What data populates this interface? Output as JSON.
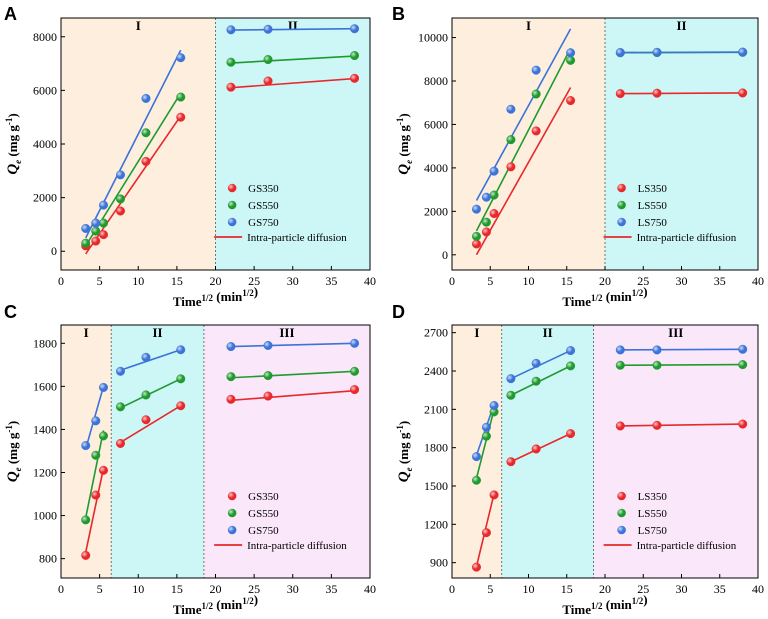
{
  "chart_data": [
    {
      "panel": "A",
      "type": "scatter",
      "xlabel": "Time1/2 (min1/2)",
      "ylabel": "Qe (mg g-1)",
      "xlim": [
        0,
        40
      ],
      "ylim": [
        -700,
        8700
      ],
      "xticks": [
        0,
        5,
        10,
        15,
        20,
        25,
        30,
        35,
        40
      ],
      "yticks": [
        0,
        2000,
        4000,
        6000,
        8000
      ],
      "regions": [
        {
          "label": "I",
          "from": 0,
          "to": 20,
          "color": "#fdeedd"
        },
        {
          "label": "II",
          "from": 20,
          "to": 40,
          "color": "#cdf7f7"
        }
      ],
      "legend": {
        "position": "bottom-right",
        "fit_label": "Intra-particle diffusion",
        "entries": [
          "GS350",
          "GS550",
          "GS750"
        ]
      },
      "series": [
        {
          "name": "GS350",
          "color": "#e8282b",
          "x": [
            3.2,
            4.5,
            5.5,
            7.7,
            11.0,
            15.5,
            22.0,
            26.8,
            38.0
          ],
          "y": [
            200,
            380,
            620,
            1500,
            3350,
            5000,
            6120,
            6350,
            6450
          ],
          "fits": [
            {
              "x": [
                3.2,
                15.5
              ],
              "y": [
                -100,
                5050
              ]
            },
            {
              "x": [
                22.0,
                38.0
              ],
              "y": [
                6100,
                6440
              ]
            }
          ]
        },
        {
          "name": "GS550",
          "color": "#1f9a2e",
          "x": [
            3.2,
            4.5,
            5.5,
            7.7,
            11.0,
            15.5,
            22.0,
            26.8,
            38.0
          ],
          "y": [
            300,
            750,
            1050,
            1950,
            4420,
            5750,
            7050,
            7150,
            7300
          ],
          "fits": [
            {
              "x": [
                3.2,
                15.5
              ],
              "y": [
                200,
                5900
              ]
            },
            {
              "x": [
                22.0,
                38.0
              ],
              "y": [
                7020,
                7280
              ]
            }
          ]
        },
        {
          "name": "GS750",
          "color": "#3b73d8",
          "x": [
            3.2,
            4.5,
            5.5,
            7.7,
            11.0,
            15.5,
            22.0,
            26.8,
            38.0
          ],
          "y": [
            850,
            1050,
            1720,
            2850,
            5700,
            7220,
            8260,
            8280,
            8300
          ],
          "fits": [
            {
              "x": [
                3.2,
                15.5
              ],
              "y": [
                500,
                7500
              ]
            },
            {
              "x": [
                22.0,
                38.0
              ],
              "y": [
                8250,
                8300
              ]
            }
          ]
        }
      ]
    },
    {
      "panel": "B",
      "type": "scatter",
      "xlabel": "Time1/2 (min1/2)",
      "ylabel": "Qe (mg g-1)",
      "xlim": [
        0,
        40
      ],
      "ylim": [
        -700,
        10900
      ],
      "xticks": [
        0,
        5,
        10,
        15,
        20,
        25,
        30,
        35,
        40
      ],
      "yticks": [
        0,
        2000,
        4000,
        6000,
        8000,
        10000
      ],
      "regions": [
        {
          "label": "I",
          "from": 0,
          "to": 20,
          "color": "#fdeedd"
        },
        {
          "label": "II",
          "from": 20,
          "to": 40,
          "color": "#cdf7f7"
        }
      ],
      "legend": {
        "position": "bottom-right",
        "fit_label": "Intra-particle diffusion",
        "entries": [
          "LS350",
          "LS550",
          "LS750"
        ]
      },
      "series": [
        {
          "name": "LS350",
          "color": "#e8282b",
          "x": [
            3.2,
            4.5,
            5.5,
            7.7,
            11.0,
            15.5,
            22.0,
            26.8,
            38.0
          ],
          "y": [
            500,
            1050,
            1900,
            4050,
            5700,
            7100,
            7420,
            7440,
            7450
          ],
          "fits": [
            {
              "x": [
                3.2,
                15.5
              ],
              "y": [
                0,
                7700
              ]
            },
            {
              "x": [
                22.0,
                38.0
              ],
              "y": [
                7420,
                7450
              ]
            }
          ]
        },
        {
          "name": "LS550",
          "color": "#1f9a2e",
          "x": [
            3.2,
            4.5,
            5.5,
            7.7,
            11.0,
            15.5,
            22.0,
            26.8,
            38.0
          ],
          "y": [
            850,
            1500,
            2750,
            5300,
            7400,
            8950,
            9300,
            9310,
            9320
          ],
          "fits": [
            {
              "x": [
                3.2,
                15.5
              ],
              "y": [
                1100,
                9500
              ]
            },
            {
              "x": [
                22.0,
                38.0
              ],
              "y": [
                9300,
                9320
              ]
            }
          ]
        },
        {
          "name": "LS750",
          "color": "#3b73d8",
          "x": [
            3.2,
            4.5,
            5.5,
            7.7,
            11.0,
            15.5,
            22.0,
            26.8,
            38.0
          ],
          "y": [
            2100,
            2650,
            3850,
            6700,
            8500,
            9300,
            9310,
            9320,
            9330
          ],
          "fits": [
            {
              "x": [
                3.2,
                15.5
              ],
              "y": [
                2500,
                10400
              ]
            },
            {
              "x": [
                22.0,
                38.0
              ],
              "y": [
                9310,
                9330
              ]
            }
          ]
        }
      ]
    },
    {
      "panel": "C",
      "type": "scatter",
      "xlabel": "Time1/2 (min1/2)",
      "ylabel": "Qe (mg g-1)",
      "xlim": [
        0,
        40
      ],
      "ylim": [
        710,
        1885
      ],
      "xticks": [
        0,
        5,
        10,
        15,
        20,
        25,
        30,
        35,
        40
      ],
      "yticks": [
        800,
        1000,
        1200,
        1400,
        1600,
        1800
      ],
      "regions": [
        {
          "label": "I",
          "from": 0,
          "to": 6.5,
          "color": "#fdeedd"
        },
        {
          "label": "II",
          "from": 6.5,
          "to": 18.5,
          "color": "#cdf7f7"
        },
        {
          "label": "III",
          "from": 18.5,
          "to": 40,
          "color": "#fae8fa"
        }
      ],
      "legend": {
        "position": "bottom-right",
        "fit_label": "Intra-particle diffusion",
        "entries": [
          "GS350",
          "GS550",
          "GS750"
        ]
      },
      "series": [
        {
          "name": "GS350",
          "color": "#e8282b",
          "x": [
            3.2,
            4.5,
            5.5,
            7.7,
            11.0,
            15.5,
            22.0,
            26.8,
            38.0
          ],
          "y": [
            815,
            1095,
            1210,
            1335,
            1445,
            1510,
            1540,
            1555,
            1585
          ],
          "fits": [
            {
              "x": [
                3.2,
                5.5
              ],
              "y": [
                830,
                1220
              ]
            },
            {
              "x": [
                7.7,
                15.5
              ],
              "y": [
                1340,
                1510
              ]
            },
            {
              "x": [
                22.0,
                38.0
              ],
              "y": [
                1535,
                1580
              ]
            }
          ]
        },
        {
          "name": "GS550",
          "color": "#1f9a2e",
          "x": [
            3.2,
            4.5,
            5.5,
            7.7,
            11.0,
            15.5,
            22.0,
            26.8,
            38.0
          ],
          "y": [
            980,
            1280,
            1370,
            1505,
            1560,
            1635,
            1645,
            1650,
            1670
          ],
          "fits": [
            {
              "x": [
                3.2,
                5.5
              ],
              "y": [
                990,
                1395
              ]
            },
            {
              "x": [
                7.7,
                15.5
              ],
              "y": [
                1500,
                1635
              ]
            },
            {
              "x": [
                22.0,
                38.0
              ],
              "y": [
                1640,
                1670
              ]
            }
          ]
        },
        {
          "name": "GS750",
          "color": "#3b73d8",
          "x": [
            3.2,
            4.5,
            5.5,
            7.7,
            11.0,
            15.5,
            22.0,
            26.8,
            38.0
          ],
          "y": [
            1325,
            1440,
            1595,
            1670,
            1735,
            1770,
            1785,
            1790,
            1800
          ],
          "fits": [
            {
              "x": [
                3.2,
                5.5
              ],
              "y": [
                1310,
                1600
              ]
            },
            {
              "x": [
                7.7,
                15.5
              ],
              "y": [
                1675,
                1770
              ]
            },
            {
              "x": [
                22.0,
                38.0
              ],
              "y": [
                1785,
                1800
              ]
            }
          ]
        }
      ]
    },
    {
      "panel": "D",
      "type": "scatter",
      "xlabel": "Time1/2 (min1/2)",
      "ylabel": "Qe (mg g-1)",
      "xlim": [
        0,
        40
      ],
      "ylim": [
        780,
        2760
      ],
      "xticks": [
        0,
        5,
        10,
        15,
        20,
        25,
        30,
        35,
        40
      ],
      "yticks": [
        900,
        1200,
        1500,
        1800,
        2100,
        2400,
        2700
      ],
      "regions": [
        {
          "label": "I",
          "from": 0,
          "to": 6.5,
          "color": "#fdeedd"
        },
        {
          "label": "II",
          "from": 6.5,
          "to": 18.5,
          "color": "#cdf7f7"
        },
        {
          "label": "III",
          "from": 18.5,
          "to": 40,
          "color": "#fae8fa"
        }
      ],
      "legend": {
        "position": "bottom-right",
        "fit_label": "Intra-particle diffusion",
        "entries": [
          "LS350",
          "LS550",
          "LS750"
        ]
      },
      "series": [
        {
          "name": "LS350",
          "color": "#e8282b",
          "x": [
            3.2,
            4.5,
            5.5,
            7.7,
            11.0,
            15.5,
            22.0,
            26.8,
            38.0
          ],
          "y": [
            865,
            1135,
            1430,
            1690,
            1790,
            1910,
            1970,
            1975,
            1985
          ],
          "fits": [
            {
              "x": [
                3.2,
                5.5
              ],
              "y": [
                870,
                1440
              ]
            },
            {
              "x": [
                7.7,
                15.5
              ],
              "y": [
                1690,
                1910
              ]
            },
            {
              "x": [
                22.0,
                38.0
              ],
              "y": [
                1970,
                1985
              ]
            }
          ]
        },
        {
          "name": "LS550",
          "color": "#1f9a2e",
          "x": [
            3.2,
            4.5,
            5.5,
            7.7,
            11.0,
            15.5,
            22.0,
            26.8,
            38.0
          ],
          "y": [
            1545,
            1890,
            2080,
            2210,
            2320,
            2440,
            2445,
            2445,
            2450
          ],
          "fits": [
            {
              "x": [
                3.2,
                5.5
              ],
              "y": [
                1560,
                2100
              ]
            },
            {
              "x": [
                7.7,
                15.5
              ],
              "y": [
                2210,
                2440
              ]
            },
            {
              "x": [
                22.0,
                38.0
              ],
              "y": [
                2445,
                2450
              ]
            }
          ]
        },
        {
          "name": "LS750",
          "color": "#3b73d8",
          "x": [
            3.2,
            4.5,
            5.5,
            7.7,
            11.0,
            15.5,
            22.0,
            26.8,
            38.0
          ],
          "y": [
            1730,
            1960,
            2130,
            2340,
            2460,
            2560,
            2565,
            2565,
            2570
          ],
          "fits": [
            {
              "x": [
                3.2,
                5.5
              ],
              "y": [
                1740,
                2140
              ]
            },
            {
              "x": [
                7.7,
                15.5
              ],
              "y": [
                2340,
                2560
              ]
            },
            {
              "x": [
                22.0,
                38.0
              ],
              "y": [
                2565,
                2570
              ]
            }
          ]
        }
      ]
    }
  ]
}
